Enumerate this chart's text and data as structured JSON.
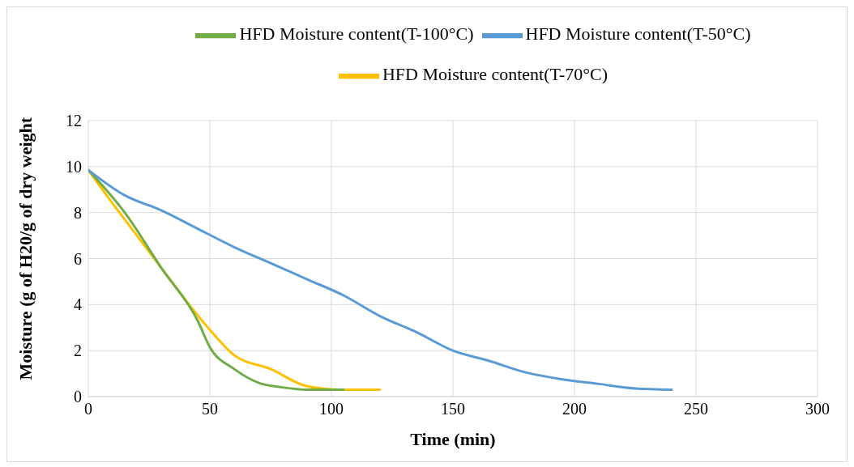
{
  "chart_data": {
    "type": "line",
    "xlabel": "Time (min)",
    "ylabel": "Moisture (g of H20/g of dry weight",
    "xlim": [
      0,
      300
    ],
    "xticks": [
      0,
      50,
      100,
      150,
      200,
      250,
      300
    ],
    "ylim": [
      0,
      12
    ],
    "yticks": [
      0,
      2,
      4,
      6,
      8,
      10,
      12
    ],
    "grid": true,
    "legend": "top",
    "marker": "none",
    "line_style": "solid",
    "series": [
      {
        "name": "HFD Moisture content(T-70°C)",
        "color": "#ffc000",
        "x": [
          0,
          10,
          20,
          30,
          40,
          50,
          60,
          75,
          90,
          105,
          120
        ],
        "values": [
          9.85,
          8.4,
          7.0,
          5.6,
          4.2,
          2.9,
          1.8,
          1.2,
          0.45,
          0.3,
          0.3
        ]
      },
      {
        "name": "HFD Moisture content(T-100°C)",
        "color": "#70ad47",
        "x": [
          0,
          15,
          30,
          45,
          50,
          60,
          70,
          80,
          90,
          105
        ],
        "values": [
          9.85,
          8.0,
          5.6,
          3.3,
          2.15,
          1.2,
          0.6,
          0.4,
          0.3,
          0.3
        ]
      },
      {
        "name": "HFD Moisture content(T-50°C)",
        "color": "#5b9bd5",
        "x": [
          0,
          15,
          30,
          45,
          60,
          75,
          90,
          105,
          120,
          135,
          150,
          165,
          180,
          195,
          210,
          225,
          240
        ],
        "values": [
          9.85,
          8.75,
          8.1,
          7.3,
          6.5,
          5.8,
          5.1,
          4.4,
          3.5,
          2.8,
          2.0,
          1.55,
          1.05,
          0.75,
          0.55,
          0.35,
          0.3
        ]
      }
    ]
  }
}
